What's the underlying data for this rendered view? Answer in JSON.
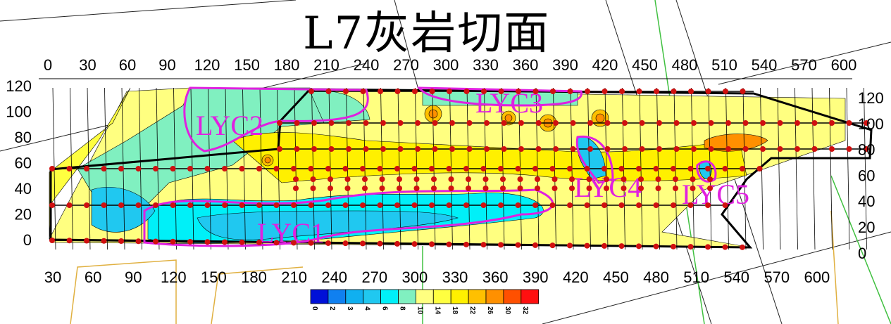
{
  "title": "L7灰岩切面",
  "axes": {
    "top_ticks": [
      "0",
      "30",
      "60",
      "90",
      "120",
      "150",
      "180",
      "210",
      "240",
      "270",
      "300",
      "330",
      "360",
      "390",
      "420",
      "450",
      "480",
      "510",
      "540",
      "570",
      "600"
    ],
    "bottom_ticks": [
      "30",
      "60",
      "90",
      "120",
      "150",
      "180",
      "210",
      "240",
      "270",
      "300",
      "330",
      "360",
      "390",
      "420",
      "450",
      "480",
      "510",
      "540",
      "570",
      "600"
    ],
    "left_ticks": [
      "120",
      "100",
      "80",
      "60",
      "40",
      "20",
      "0"
    ],
    "right_ticks": [
      "120",
      "100",
      "80",
      "60",
      "40",
      "20",
      "0"
    ]
  },
  "zones": [
    "LYC1",
    "LYC2",
    "LYC3",
    "LYC4",
    "LYC5"
  ],
  "legend": {
    "labels": [
      "0",
      "2",
      "3",
      "4",
      "6",
      "8",
      "10",
      "14",
      "18",
      "22",
      "26",
      "30",
      "32"
    ],
    "colors": [
      "#0010d8",
      "#1080f0",
      "#10b0f0",
      "#20c8f0",
      "#00f0f8",
      "#80f0c0",
      "#ffff80",
      "#ffff40",
      "#fff000",
      "#ffc000",
      "#ff9000",
      "#ff5000",
      "#ff1010"
    ]
  }
}
